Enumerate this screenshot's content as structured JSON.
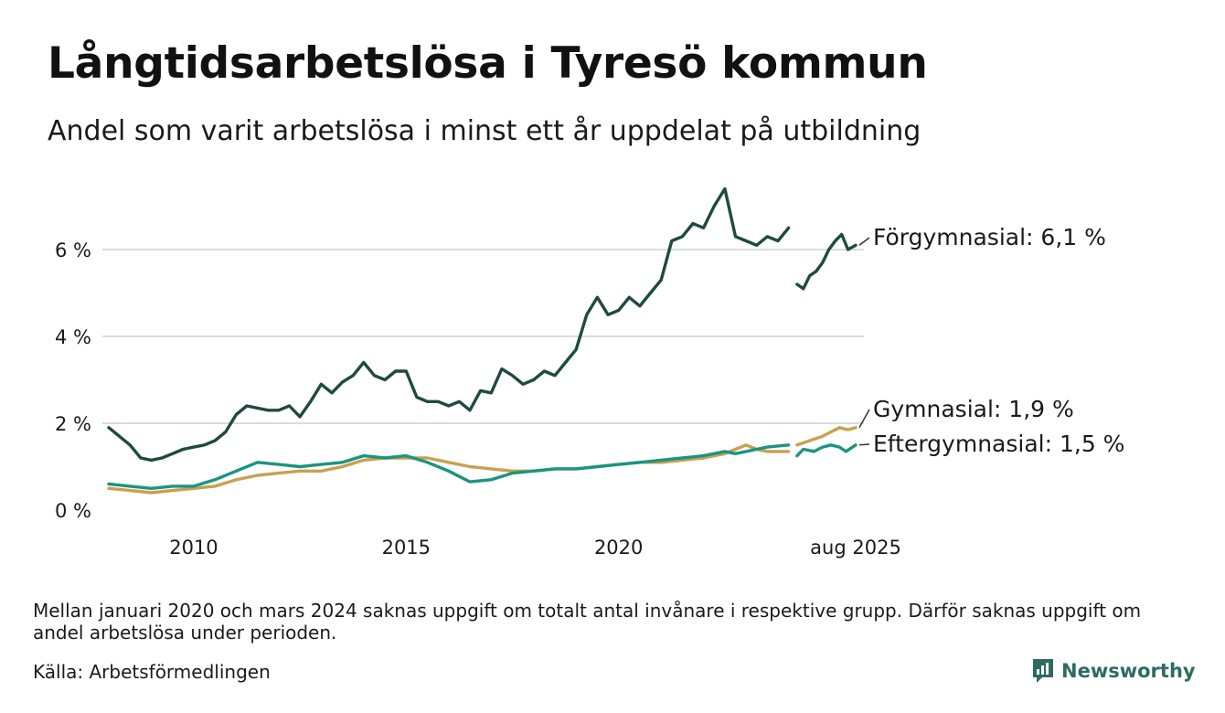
{
  "header": {
    "title": "Långtidsarbetslösa i Tyresö kommun",
    "subtitle": "Andel som varit arbetslösa i minst ett år uppdelat på utbildning"
  },
  "footer": {
    "note": "Mellan januari 2020 och mars 2024 saknas uppgift om totalt antal invånare i respektive grupp. Därför saknas uppgift om andel arbetslösa under perioden.",
    "source": "Källa: Arbetsförmedlingen",
    "brand": "Newsworthy"
  },
  "colors": {
    "forgymnasial": "#1f4a40",
    "gymnasial": "#c9a04e",
    "eftergymnasial": "#1a9580",
    "grid": "#dcdcdc",
    "brand": "#2d6b62"
  },
  "chart_data": {
    "type": "line",
    "x_unit": "year",
    "ylim": [
      0,
      7.6
    ],
    "y_ticks": [
      {
        "value": 0,
        "label": "0 %"
      },
      {
        "value": 2,
        "label": "2 %"
      },
      {
        "value": 4,
        "label": "4 %"
      },
      {
        "value": 6,
        "label": "6 %"
      }
    ],
    "x_ticks": [
      {
        "value": 2010,
        "label": "2010"
      },
      {
        "value": 2015,
        "label": "2015"
      },
      {
        "value": 2020,
        "label": "2020"
      },
      {
        "value": 2025.58,
        "label": "aug 2025"
      }
    ],
    "grid": "horizontal",
    "series": [
      {
        "name": "Förgymnasial",
        "label": "Förgymnasial: 6,1 %",
        "color_key": "forgymnasial",
        "segments": [
          [
            [
              2008.0,
              1.9
            ],
            [
              2008.25,
              1.7
            ],
            [
              2008.5,
              1.5
            ],
            [
              2008.75,
              1.2
            ],
            [
              2009.0,
              1.15
            ],
            [
              2009.25,
              1.2
            ],
            [
              2009.5,
              1.3
            ],
            [
              2009.75,
              1.4
            ],
            [
              2010.0,
              1.45
            ],
            [
              2010.25,
              1.5
            ],
            [
              2010.5,
              1.6
            ],
            [
              2010.75,
              1.8
            ],
            [
              2011.0,
              2.2
            ],
            [
              2011.25,
              2.4
            ],
            [
              2011.5,
              2.35
            ],
            [
              2011.75,
              2.3
            ],
            [
              2012.0,
              2.3
            ],
            [
              2012.25,
              2.4
            ],
            [
              2012.5,
              2.15
            ],
            [
              2012.75,
              2.5
            ],
            [
              2013.0,
              2.9
            ],
            [
              2013.25,
              2.7
            ],
            [
              2013.5,
              2.95
            ],
            [
              2013.75,
              3.1
            ],
            [
              2014.0,
              3.4
            ],
            [
              2014.25,
              3.1
            ],
            [
              2014.5,
              3.0
            ],
            [
              2014.75,
              3.2
            ],
            [
              2015.0,
              3.2
            ],
            [
              2015.25,
              2.6
            ],
            [
              2015.5,
              2.5
            ],
            [
              2015.75,
              2.5
            ],
            [
              2016.0,
              2.4
            ],
            [
              2016.25,
              2.5
            ],
            [
              2016.5,
              2.3
            ],
            [
              2016.75,
              2.75
            ],
            [
              2017.0,
              2.7
            ],
            [
              2017.25,
              3.25
            ],
            [
              2017.5,
              3.1
            ],
            [
              2017.75,
              2.9
            ],
            [
              2018.0,
              3.0
            ],
            [
              2018.25,
              3.2
            ],
            [
              2018.5,
              3.1
            ],
            [
              2018.75,
              3.4
            ],
            [
              2019.0,
              3.7
            ],
            [
              2019.25,
              4.5
            ],
            [
              2019.5,
              4.9
            ],
            [
              2019.75,
              4.5
            ],
            [
              2020.0,
              4.6
            ],
            [
              2020.25,
              4.9
            ],
            [
              2020.5,
              4.7
            ],
            [
              2020.75,
              5.0
            ],
            [
              2021.0,
              5.3
            ],
            [
              2021.25,
              6.2
            ],
            [
              2021.5,
              6.3
            ],
            [
              2021.75,
              6.6
            ],
            [
              2022.0,
              6.5
            ],
            [
              2022.25,
              7.0
            ],
            [
              2022.5,
              7.4
            ],
            [
              2022.75,
              6.3
            ],
            [
              2023.0,
              6.2
            ],
            [
              2023.25,
              6.1
            ],
            [
              2023.5,
              6.3
            ],
            [
              2023.75,
              6.2
            ],
            [
              2024.0,
              6.5
            ]
          ],
          [
            [
              2024.2,
              5.2
            ],
            [
              2024.35,
              5.1
            ],
            [
              2024.5,
              5.4
            ],
            [
              2024.65,
              5.5
            ],
            [
              2024.8,
              5.7
            ],
            [
              2024.95,
              6.0
            ],
            [
              2025.1,
              6.2
            ],
            [
              2025.25,
              6.35
            ],
            [
              2025.4,
              6.0
            ],
            [
              2025.58,
              6.1
            ]
          ]
        ]
      },
      {
        "name": "Gymnasial",
        "label": "Gymnasial: 1,9 %",
        "color_key": "gymnasial",
        "segments": [
          [
            [
              2008.0,
              0.5
            ],
            [
              2008.5,
              0.45
            ],
            [
              2009.0,
              0.4
            ],
            [
              2009.5,
              0.45
            ],
            [
              2010.0,
              0.5
            ],
            [
              2010.5,
              0.55
            ],
            [
              2011.0,
              0.7
            ],
            [
              2011.5,
              0.8
            ],
            [
              2012.0,
              0.85
            ],
            [
              2012.5,
              0.9
            ],
            [
              2013.0,
              0.9
            ],
            [
              2013.5,
              1.0
            ],
            [
              2014.0,
              1.15
            ],
            [
              2014.5,
              1.2
            ],
            [
              2015.0,
              1.2
            ],
            [
              2015.5,
              1.2
            ],
            [
              2016.0,
              1.1
            ],
            [
              2016.5,
              1.0
            ],
            [
              2017.0,
              0.95
            ],
            [
              2017.5,
              0.9
            ],
            [
              2018.0,
              0.9
            ],
            [
              2018.5,
              0.95
            ],
            [
              2019.0,
              0.95
            ],
            [
              2019.5,
              1.0
            ],
            [
              2020.0,
              1.05
            ],
            [
              2020.5,
              1.1
            ],
            [
              2021.0,
              1.1
            ],
            [
              2021.5,
              1.15
            ],
            [
              2022.0,
              1.2
            ],
            [
              2022.5,
              1.3
            ],
            [
              2022.75,
              1.4
            ],
            [
              2023.0,
              1.5
            ],
            [
              2023.25,
              1.4
            ],
            [
              2023.5,
              1.35
            ],
            [
              2024.0,
              1.35
            ]
          ],
          [
            [
              2024.2,
              1.5
            ],
            [
              2024.5,
              1.6
            ],
            [
              2024.8,
              1.7
            ],
            [
              2025.0,
              1.8
            ],
            [
              2025.2,
              1.9
            ],
            [
              2025.4,
              1.85
            ],
            [
              2025.58,
              1.9
            ]
          ]
        ]
      },
      {
        "name": "Eftergymnasial",
        "label": "Eftergymnasial: 1,5 %",
        "color_key": "eftergymnasial",
        "segments": [
          [
            [
              2008.0,
              0.6
            ],
            [
              2008.5,
              0.55
            ],
            [
              2009.0,
              0.5
            ],
            [
              2009.5,
              0.55
            ],
            [
              2010.0,
              0.55
            ],
            [
              2010.5,
              0.7
            ],
            [
              2011.0,
              0.9
            ],
            [
              2011.5,
              1.1
            ],
            [
              2012.0,
              1.05
            ],
            [
              2012.5,
              1.0
            ],
            [
              2013.0,
              1.05
            ],
            [
              2013.5,
              1.1
            ],
            [
              2014.0,
              1.25
            ],
            [
              2014.5,
              1.2
            ],
            [
              2015.0,
              1.25
            ],
            [
              2015.5,
              1.1
            ],
            [
              2016.0,
              0.9
            ],
            [
              2016.5,
              0.65
            ],
            [
              2017.0,
              0.7
            ],
            [
              2017.5,
              0.85
            ],
            [
              2018.0,
              0.9
            ],
            [
              2018.5,
              0.95
            ],
            [
              2019.0,
              0.95
            ],
            [
              2019.5,
              1.0
            ],
            [
              2020.0,
              1.05
            ],
            [
              2020.5,
              1.1
            ],
            [
              2021.0,
              1.15
            ],
            [
              2021.5,
              1.2
            ],
            [
              2022.0,
              1.25
            ],
            [
              2022.5,
              1.35
            ],
            [
              2022.75,
              1.3
            ],
            [
              2023.0,
              1.35
            ],
            [
              2023.25,
              1.4
            ],
            [
              2023.5,
              1.45
            ],
            [
              2024.0,
              1.5
            ]
          ],
          [
            [
              2024.2,
              1.25
            ],
            [
              2024.35,
              1.4
            ],
            [
              2024.6,
              1.35
            ],
            [
              2024.8,
              1.45
            ],
            [
              2025.0,
              1.5
            ],
            [
              2025.2,
              1.45
            ],
            [
              2025.35,
              1.35
            ],
            [
              2025.58,
              1.5
            ]
          ]
        ]
      }
    ]
  }
}
